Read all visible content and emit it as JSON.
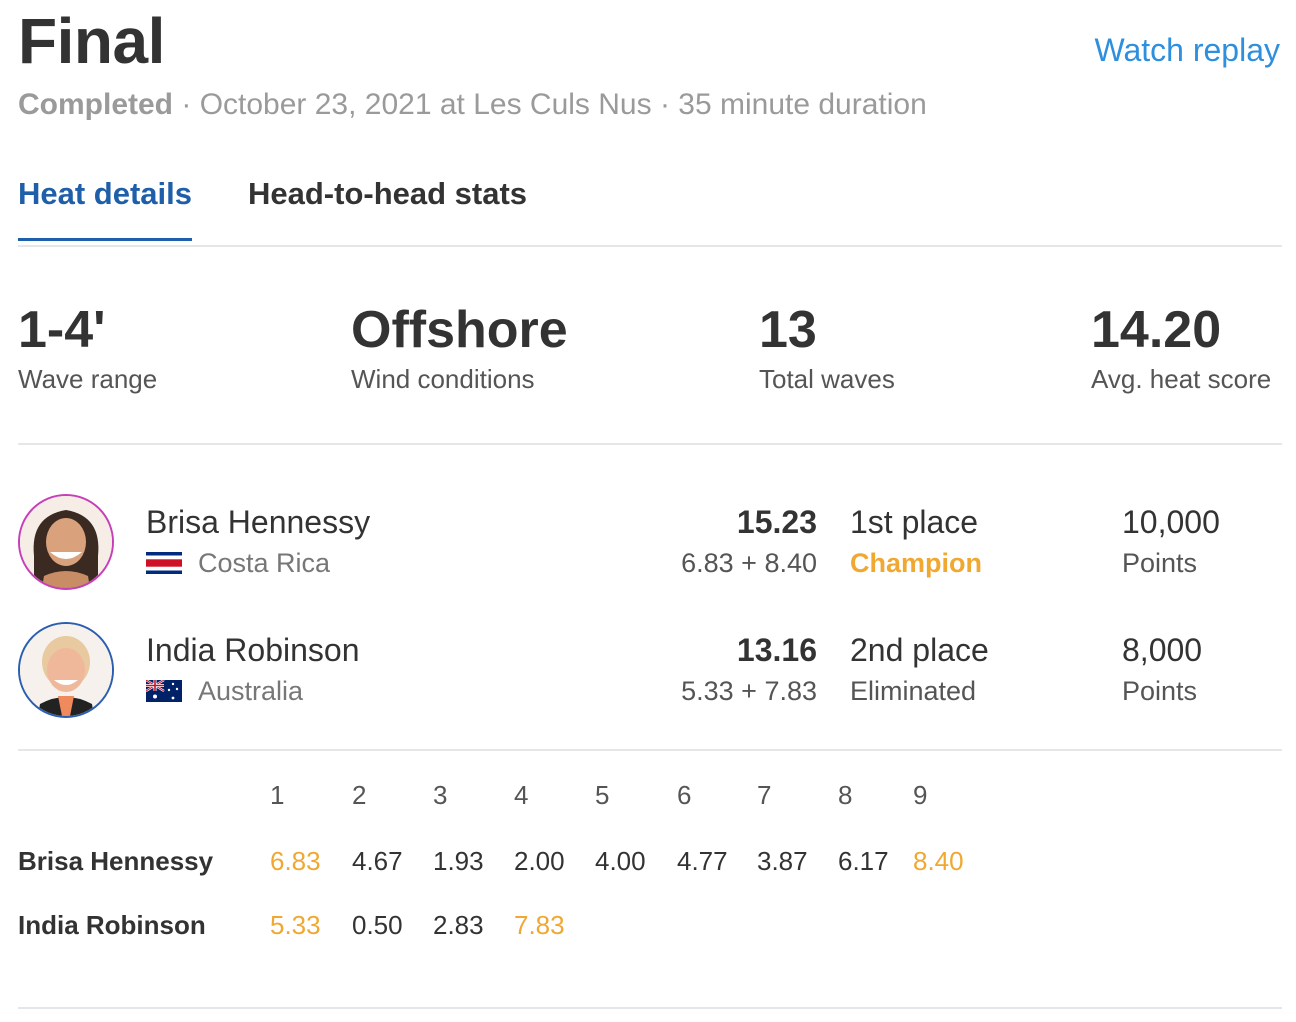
{
  "header": {
    "title": "Final",
    "watch_replay": "Watch replay",
    "status": "Completed",
    "sep1": " · ",
    "detail": "October 23, 2021 at Les Culs Nus",
    "sep2": " · ",
    "duration": "35 minute duration"
  },
  "tabs": [
    {
      "label": "Heat details",
      "active": true
    },
    {
      "label": "Head-to-head stats",
      "active": false
    }
  ],
  "stats": [
    {
      "value": "1-4'",
      "label": "Wave range"
    },
    {
      "value": "Offshore",
      "label": "Wind conditions"
    },
    {
      "value": "13",
      "label": "Total waves"
    },
    {
      "value": "14.20",
      "label": "Avg. heat score"
    }
  ],
  "athletes": [
    {
      "name": "Brisa Hennessy",
      "country": "Costa Rica",
      "flag": "costa-rica-flag-icon",
      "total": "15.23",
      "breakdown": "6.83 + 8.40",
      "place": "1st place",
      "outcome": "Champion",
      "points": "10,000",
      "points_label": "Points",
      "ring_color": "#c53fb9"
    },
    {
      "name": "India Robinson",
      "country": "Australia",
      "flag": "australia-flag-icon",
      "total": "13.16",
      "breakdown": "5.33 + 7.83",
      "place": "2nd place",
      "outcome": "Eliminated",
      "points": "8,000",
      "points_label": "Points",
      "ring_color": "#2a5fb0"
    }
  ],
  "wave_table": {
    "headers": [
      "1",
      "2",
      "3",
      "4",
      "5",
      "6",
      "7",
      "8",
      "9"
    ],
    "rows": [
      {
        "name": "Brisa Hennessy",
        "scores": [
          "6.83",
          "4.67",
          "1.93",
          "2.00",
          "4.00",
          "4.77",
          "3.87",
          "6.17",
          "8.40"
        ],
        "best": [
          0,
          8
        ]
      },
      {
        "name": "India Robinson",
        "scores": [
          "5.33",
          "0.50",
          "2.83",
          "7.83"
        ],
        "best": [
          0,
          3
        ]
      }
    ]
  },
  "colors": {
    "accent_blue": "#1f5ea8",
    "link_blue": "#2d8fdd",
    "highlight_orange": "#f0a830"
  }
}
